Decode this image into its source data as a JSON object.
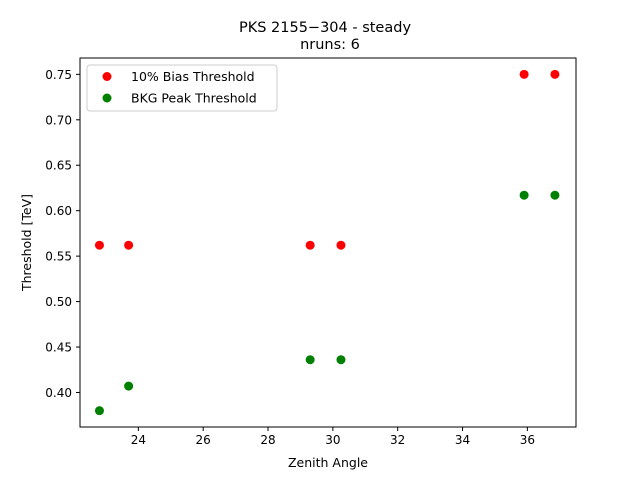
{
  "chart_data": {
    "type": "scatter",
    "title": "PKS 2155−304 - steady",
    "subtitle": "nruns: 6",
    "xlabel": "Zenith Angle",
    "ylabel": "Threshold [TeV]",
    "xlim": [
      22.2,
      37.5
    ],
    "ylim": [
      0.362,
      0.768
    ],
    "xticks": [
      24,
      26,
      28,
      30,
      32,
      34,
      36
    ],
    "yticks": [
      0.4,
      0.45,
      0.5,
      0.55,
      0.6,
      0.65,
      0.7,
      0.75
    ],
    "ytick_labels": [
      "0.40",
      "0.45",
      "0.50",
      "0.55",
      "0.60",
      "0.65",
      "0.70",
      "0.75"
    ],
    "grid": false,
    "legend_position": "top-left",
    "series": [
      {
        "name": "10% Bias Threshold",
        "color": "#ff0000",
        "points": [
          {
            "x": 22.8,
            "y": 0.562
          },
          {
            "x": 23.7,
            "y": 0.562
          },
          {
            "x": 29.3,
            "y": 0.562
          },
          {
            "x": 30.25,
            "y": 0.562
          },
          {
            "x": 35.9,
            "y": 0.75
          },
          {
            "x": 36.85,
            "y": 0.75
          }
        ]
      },
      {
        "name": "BKG Peak Threshold",
        "color": "#008000",
        "points": [
          {
            "x": 22.8,
            "y": 0.38
          },
          {
            "x": 23.7,
            "y": 0.407
          },
          {
            "x": 29.3,
            "y": 0.436
          },
          {
            "x": 30.25,
            "y": 0.436
          },
          {
            "x": 35.9,
            "y": 0.617
          },
          {
            "x": 36.85,
            "y": 0.617
          }
        ]
      }
    ]
  }
}
